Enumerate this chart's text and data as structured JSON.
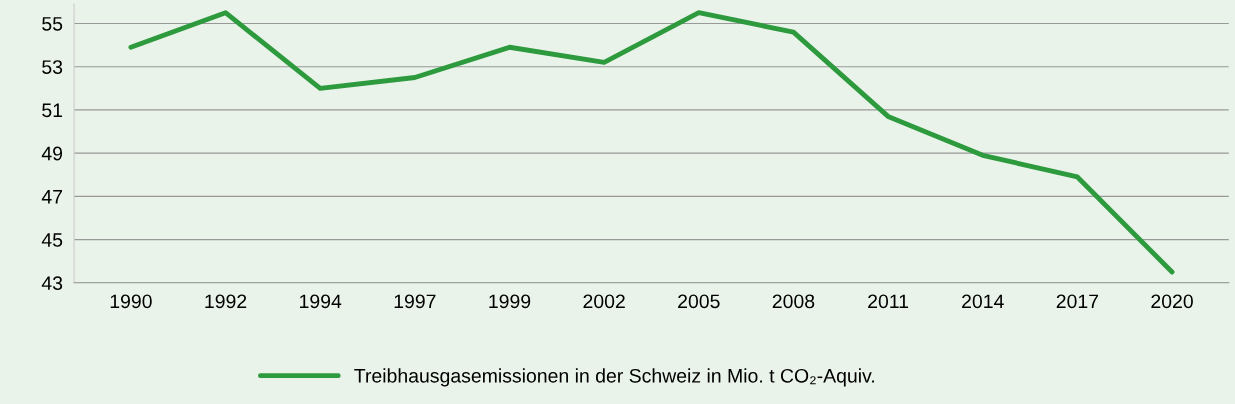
{
  "chart_data": {
    "type": "line",
    "categories": [
      "1990",
      "1992",
      "1994",
      "1997",
      "1999",
      "2002",
      "2005",
      "2008",
      "2011",
      "2014",
      "2017",
      "2020"
    ],
    "series": [
      {
        "name": "Treibhausgasemissionen in der Schweiz in Mio. t CO₂-Aquiv.",
        "color": "#2e9a3e",
        "values": [
          53.9,
          55.5,
          52.0,
          52.5,
          53.9,
          53.2,
          55.5,
          54.6,
          50.7,
          48.9,
          47.9,
          43.5
        ]
      }
    ],
    "ylim": [
      43,
      55.9
    ],
    "yticks": [
      43,
      45,
      47,
      49,
      51,
      53,
      55
    ],
    "grid": "y",
    "legend": "bottom",
    "marker": "none",
    "line_style": "solid"
  }
}
